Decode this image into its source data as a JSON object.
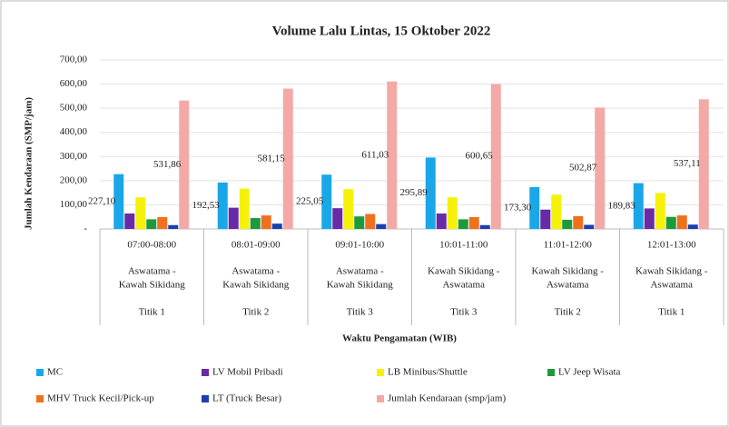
{
  "chart_data": {
    "type": "bar",
    "title": "Volume Lalu Lintas, 15 Oktober 2022",
    "y_label": "Jumlah Kendaraan (SMP/jam)",
    "x_label": "Waktu Pengamatan (WIB)",
    "categories": [
      "07:00-08:00",
      "08:01-09:00",
      "09:01-10:00",
      "10:01-11:00",
      "11:01-12:00",
      "12:01-13:00"
    ],
    "category_routes": [
      [
        "Aswatama -",
        "Kawah Sikidang"
      ],
      [
        "Aswatama -",
        "Kawah Sikidang"
      ],
      [
        "Aswatama -",
        "Kawah Sikidang"
      ],
      [
        "Kawah Sikidang -",
        "Aswatama"
      ],
      [
        "Kawah Sikidang -",
        "Aswatama"
      ],
      [
        "Kawah Sikidang -",
        "Aswatama"
      ]
    ],
    "category_points": [
      "Titik 1",
      "Titik 2",
      "Titik 3",
      "Titik 3",
      "Titik 2",
      "Titik 1"
    ],
    "ylim": [
      0,
      700
    ],
    "yticks": [
      {
        "value": 0,
        "label": "-"
      },
      {
        "value": 100,
        "label": "100,00"
      },
      {
        "value": 200,
        "label": "200,00"
      },
      {
        "value": 300,
        "label": "300,00"
      },
      {
        "value": 400,
        "label": "400,00"
      },
      {
        "value": 500,
        "label": "500,00"
      },
      {
        "value": 600,
        "label": "600,00"
      },
      {
        "value": 700,
        "label": "700,00"
      }
    ],
    "series": [
      {
        "name": "MC",
        "color": "#1aa7e8",
        "values": [
          227.1,
          192.53,
          225.05,
          295.89,
          173.3,
          189.83
        ],
        "value_labels": [
          "227,10",
          "192,53",
          "225,05",
          "295,89",
          "173,30",
          "189,83"
        ]
      },
      {
        "name": "LV Mobil Pribadi",
        "color": "#6a2aa8",
        "values": [
          64,
          88,
          86,
          64,
          80,
          85
        ]
      },
      {
        "name": "LB Minibus/Shuttle",
        "color": "#f5f10a",
        "values": [
          131,
          167,
          165,
          131,
          142,
          149
        ]
      },
      {
        "name": "LV Jeep Wisata",
        "color": "#1f9a3a",
        "values": [
          40,
          45,
          52,
          40,
          38,
          50
        ]
      },
      {
        "name": "MHV Truck Kecil/Pick-up",
        "color": "#f0701e",
        "values": [
          49,
          56,
          62,
          49,
          53,
          56
        ]
      },
      {
        "name": "LT (Truck Besar)",
        "color": "#1c3fb0",
        "values": [
          16,
          22,
          20,
          16,
          17,
          18
        ]
      },
      {
        "name": "Jumlah Kendaraan (smp/jam)",
        "color": "#f4a9a6",
        "values": [
          531.86,
          581.15,
          611.03,
          600.65,
          502.87,
          537.11
        ],
        "value_labels": [
          "531,86",
          "581,15",
          "611,03",
          "600,65",
          "502,87",
          "537,11"
        ]
      }
    ]
  }
}
